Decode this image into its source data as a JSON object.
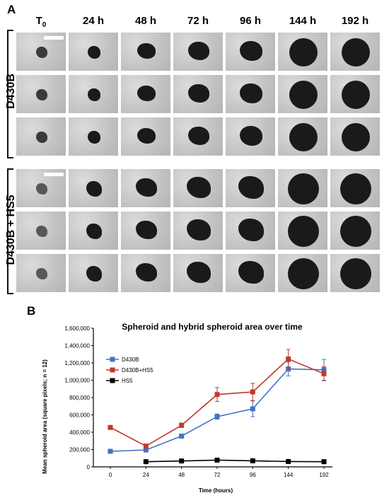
{
  "panel_a": {
    "label": "A",
    "columns": [
      "T0",
      "24 h",
      "48 h",
      "72 h",
      "96 h",
      "144 h",
      "192 h"
    ],
    "groups": [
      {
        "label": "D430B",
        "rows": 3
      },
      {
        "label": "D430B + HS5",
        "rows": 3
      }
    ]
  },
  "panel_b": {
    "label": "B"
  },
  "chart_data": {
    "type": "line",
    "title": "Spheroid and hybrid spheroid area over time",
    "xlabel": "Time (hours)",
    "ylabel": "Mean spheroid area (square pixels; n = 12)",
    "categories": [
      "0",
      "24",
      "48",
      "72",
      "96",
      "144",
      "192"
    ],
    "yticks": [
      "0",
      "200,000",
      "400,000",
      "600,000",
      "800,000",
      "1,000,000",
      "1,200,000",
      "1,400,000",
      "1,600,000"
    ],
    "ylim": [
      0,
      1600000
    ],
    "legend_position": "upper-left",
    "series": [
      {
        "name": "D430B",
        "color": "#4472c4",
        "values": [
          180000,
          195000,
          355000,
          580000,
          670000,
          1130000,
          1120000
        ],
        "errors": [
          0,
          0,
          20000,
          30000,
          90000,
          80000,
          120000
        ]
      },
      {
        "name": "D430B+HS5",
        "color": "#c0392b",
        "values": [
          455000,
          240000,
          480000,
          835000,
          865000,
          1245000,
          1075000
        ],
        "errors": [
          0,
          0,
          25000,
          80000,
          100000,
          110000,
          80000
        ]
      },
      {
        "name": "HS5",
        "color": "#000000",
        "values": [
          null,
          60000,
          68000,
          78000,
          70000,
          62000,
          60000
        ],
        "errors": [
          0,
          0,
          0,
          0,
          0,
          0,
          0
        ]
      }
    ]
  }
}
